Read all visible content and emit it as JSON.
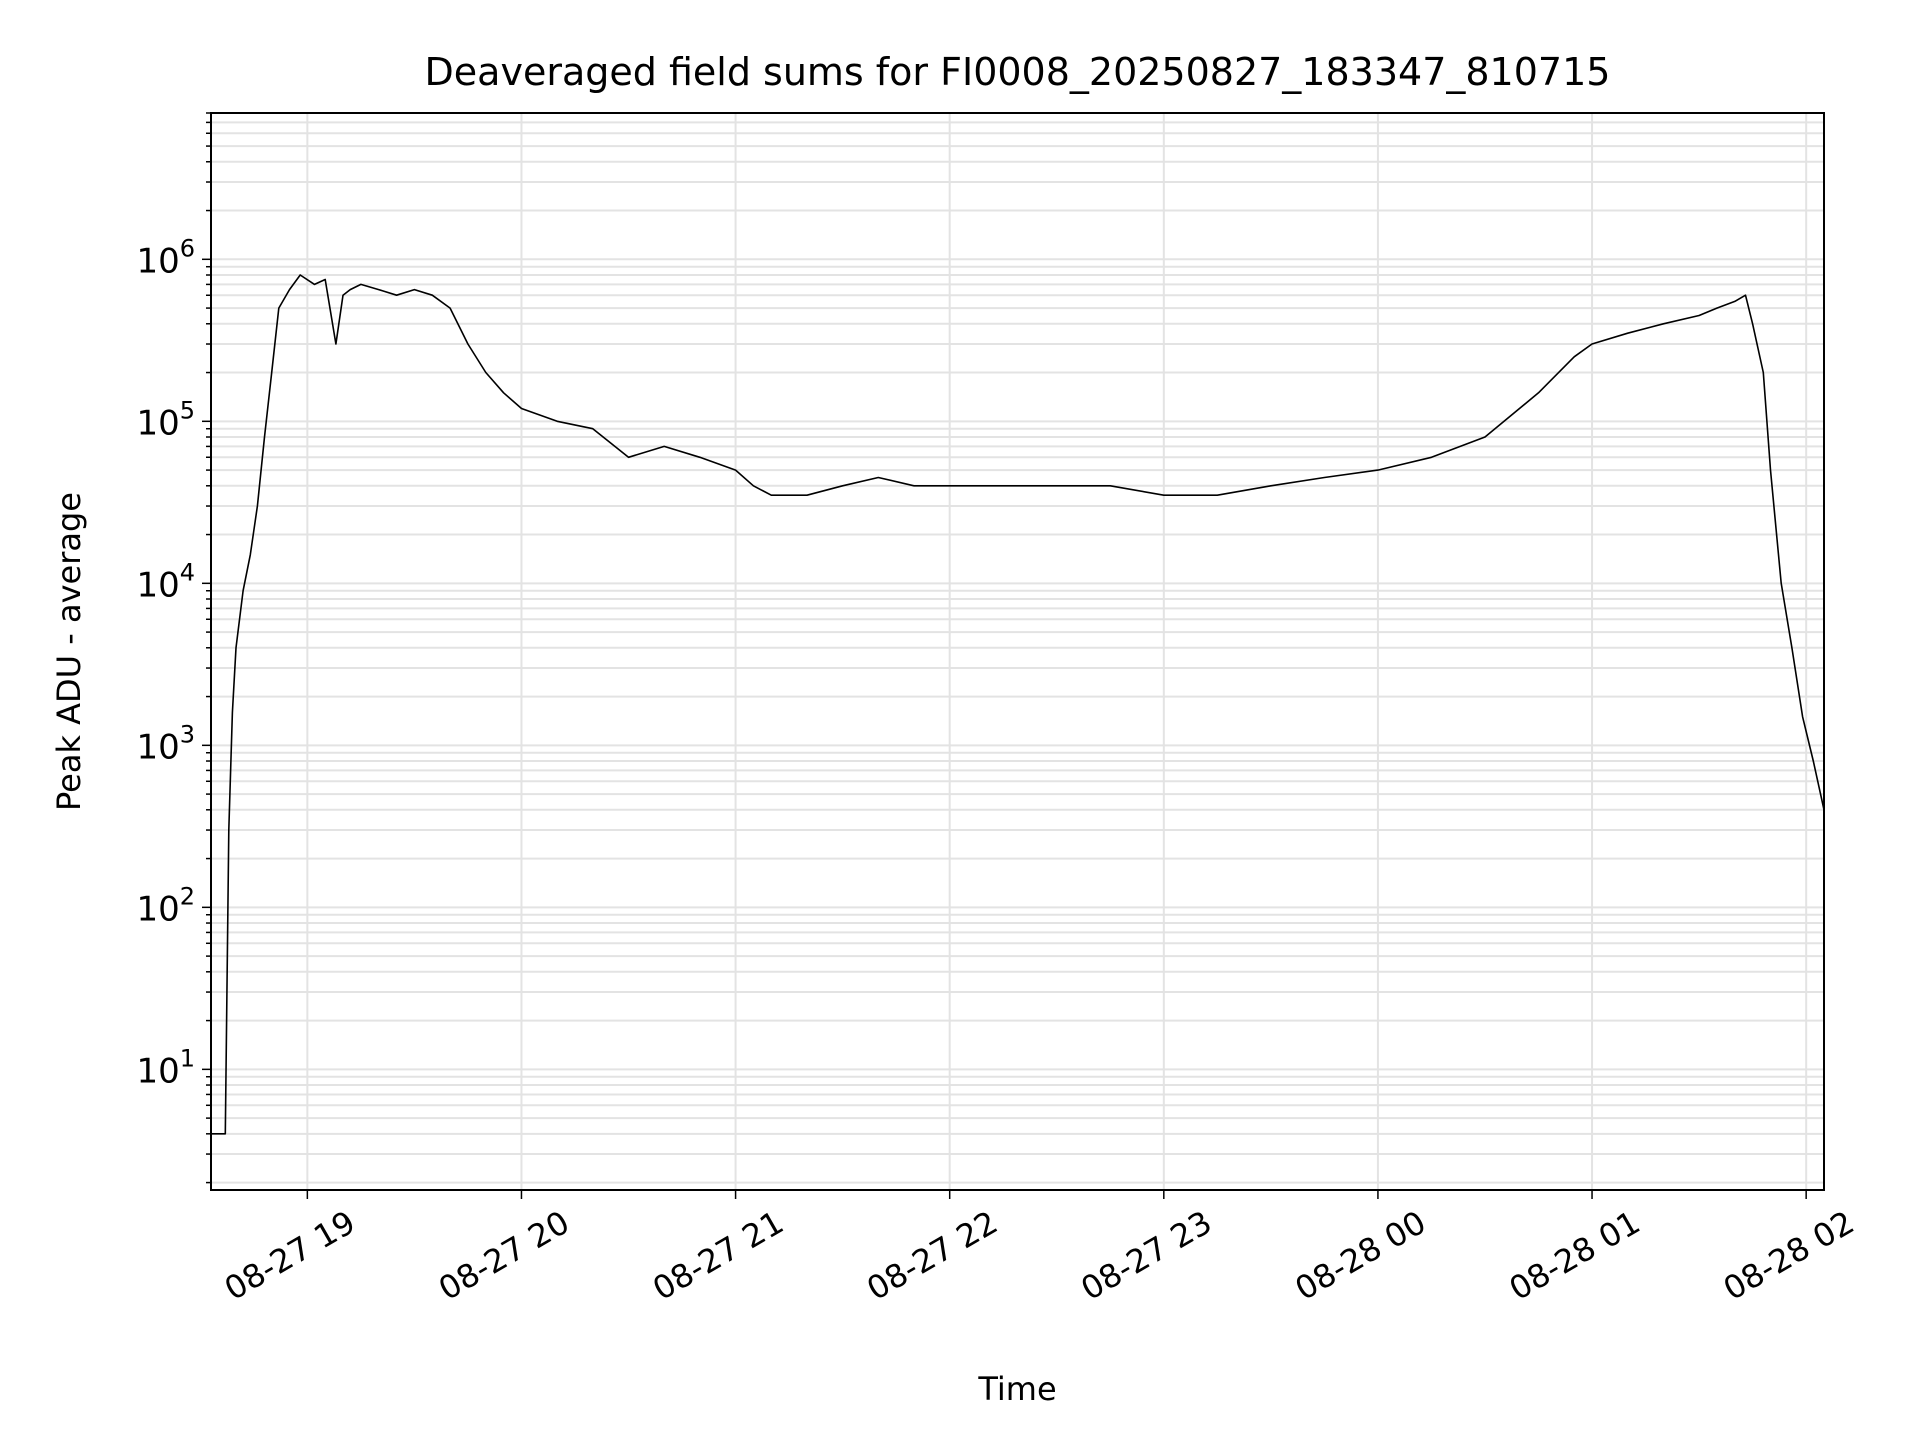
{
  "chart_data": {
    "type": "line",
    "title": "Deaveraged field sums for FI0008_20250827_183347_810715",
    "xlabel": "Time",
    "ylabel": "Peak ADU - average",
    "yscale": "log",
    "ylim": [
      1.8,
      8000000
    ],
    "xlim": [
      "2025-08-27 18:33",
      "2025-08-28 02:05"
    ],
    "grid": "major and minor",
    "legend": "none",
    "line_color": "#000000",
    "x_ticks": [
      {
        "label": "08-27 19",
        "time": "2025-08-27 19:00"
      },
      {
        "label": "08-27 20",
        "time": "2025-08-27 20:00"
      },
      {
        "label": "08-27 21",
        "time": "2025-08-27 21:00"
      },
      {
        "label": "08-27 22",
        "time": "2025-08-27 22:00"
      },
      {
        "label": "08-27 23",
        "time": "2025-08-27 23:00"
      },
      {
        "label": "08-28 00",
        "time": "2025-08-28 00:00"
      },
      {
        "label": "08-28 01",
        "time": "2025-08-28 01:00"
      },
      {
        "label": "08-28 02",
        "time": "2025-08-28 02:00"
      }
    ],
    "y_ticks": [
      {
        "mantissa": "10",
        "exponent": "1",
        "value": 10
      },
      {
        "mantissa": "10",
        "exponent": "2",
        "value": 100
      },
      {
        "mantissa": "10",
        "exponent": "3",
        "value": 1000
      },
      {
        "mantissa": "10",
        "exponent": "4",
        "value": 10000
      },
      {
        "mantissa": "10",
        "exponent": "5",
        "value": 100000
      },
      {
        "mantissa": "10",
        "exponent": "6",
        "value": 1000000
      }
    ],
    "series": [
      {
        "x": [
          "2025-08-27 18:33",
          "2025-08-27 18:36",
          "2025-08-27 18:37",
          "2025-08-27 18:38",
          "2025-08-27 18:39",
          "2025-08-27 18:40",
          "2025-08-27 18:42",
          "2025-08-27 18:44",
          "2025-08-27 18:46",
          "2025-08-27 18:48",
          "2025-08-27 18:50",
          "2025-08-27 18:52",
          "2025-08-27 18:55",
          "2025-08-27 18:58",
          "2025-08-27 19:02",
          "2025-08-27 19:05",
          "2025-08-27 19:08",
          "2025-08-27 19:10",
          "2025-08-27 19:12",
          "2025-08-27 19:15",
          "2025-08-27 19:20",
          "2025-08-27 19:25",
          "2025-08-27 19:30",
          "2025-08-27 19:35",
          "2025-08-27 19:40",
          "2025-08-27 19:45",
          "2025-08-27 19:50",
          "2025-08-27 19:55",
          "2025-08-27 20:00",
          "2025-08-27 20:10",
          "2025-08-27 20:20",
          "2025-08-27 20:30",
          "2025-08-27 20:40",
          "2025-08-27 20:50",
          "2025-08-27 21:00",
          "2025-08-27 21:05",
          "2025-08-27 21:10",
          "2025-08-27 21:20",
          "2025-08-27 21:30",
          "2025-08-27 21:40",
          "2025-08-27 21:50",
          "2025-08-27 22:00",
          "2025-08-27 22:15",
          "2025-08-27 22:30",
          "2025-08-27 22:45",
          "2025-08-27 23:00",
          "2025-08-27 23:15",
          "2025-08-27 23:30",
          "2025-08-27 23:45",
          "2025-08-28 00:00",
          "2025-08-28 00:15",
          "2025-08-28 00:30",
          "2025-08-28 00:45",
          "2025-08-28 00:55",
          "2025-08-28 01:00",
          "2025-08-28 01:10",
          "2025-08-28 01:20",
          "2025-08-28 01:30",
          "2025-08-28 01:35",
          "2025-08-28 01:40",
          "2025-08-28 01:43",
          "2025-08-28 01:45",
          "2025-08-28 01:48",
          "2025-08-28 01:50",
          "2025-08-28 01:53",
          "2025-08-28 01:56",
          "2025-08-28 01:59",
          "2025-08-28 02:02",
          "2025-08-28 02:05"
        ],
        "y": [
          4,
          4,
          4,
          300,
          1600,
          4000,
          9000,
          15000,
          30000,
          80000,
          200000,
          500000,
          650000,
          800000,
          700000,
          750000,
          300000,
          600000,
          650000,
          700000,
          650000,
          600000,
          650000,
          600000,
          500000,
          300000,
          200000,
          150000,
          120000,
          100000,
          90000,
          60000,
          70000,
          60000,
          50000,
          40000,
          35000,
          35000,
          40000,
          45000,
          40000,
          40000,
          40000,
          40000,
          40000,
          35000,
          35000,
          40000,
          45000,
          50000,
          60000,
          80000,
          150000,
          250000,
          300000,
          350000,
          400000,
          450000,
          500000,
          550000,
          600000,
          400000,
          200000,
          50000,
          10000,
          4000,
          1500,
          800,
          400
        ]
      }
    ]
  }
}
